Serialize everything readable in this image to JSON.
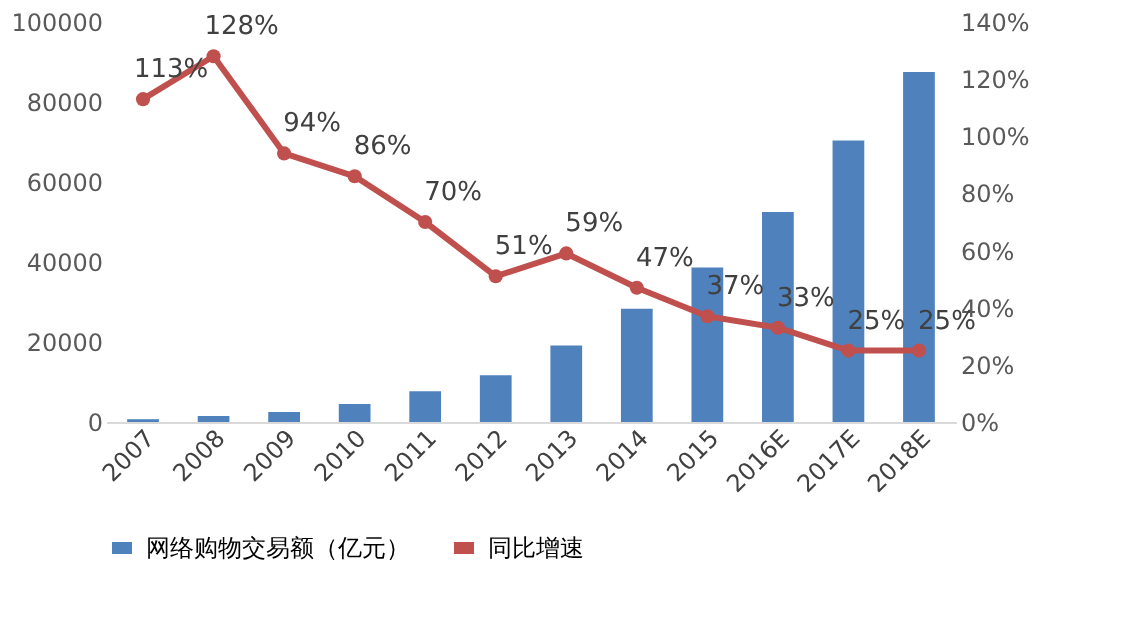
{
  "chart_data": {
    "type": "bar",
    "categories": [
      "2007",
      "2008",
      "2009",
      "2010",
      "2011",
      "2012",
      "2013",
      "2014",
      "2015",
      "2016E",
      "2017E",
      "2018E"
    ],
    "series": [
      {
        "name": "网络购物交易额（亿元）",
        "color": "#4f81bd",
        "values": [
          700,
          1500,
          2500,
          4500,
          7700,
          11700,
          19100,
          28300,
          38600,
          52500,
          70400,
          87500
        ]
      },
      {
        "name": "同比增速",
        "type": "line",
        "axis": "y2",
        "color": "#c0504d",
        "marker": "circle",
        "values": [
          113,
          128,
          94,
          86,
          70,
          51,
          59,
          47,
          37,
          33,
          25,
          25
        ],
        "value_labels": [
          "113%",
          "128%",
          "94%",
          "86%",
          "70%",
          "51%",
          "59%",
          "47%",
          "37%",
          "33%",
          "25%",
          "25%"
        ]
      }
    ],
    "ylim": [
      0,
      100000
    ],
    "yticks": [
      0,
      20000,
      40000,
      60000,
      80000,
      100000
    ],
    "y2lim": [
      0,
      140
    ],
    "y2ticks": [
      {
        "value": 0,
        "label": "0%"
      },
      {
        "value": 20,
        "label": "20%"
      },
      {
        "value": 40,
        "label": "40%"
      },
      {
        "value": 60,
        "label": "60%"
      },
      {
        "value": 80,
        "label": "80%"
      },
      {
        "value": 100,
        "label": "100%"
      },
      {
        "value": 120,
        "label": "120%"
      },
      {
        "value": 140,
        "label": "140%"
      }
    ],
    "grid": false,
    "legend": "bottom"
  }
}
